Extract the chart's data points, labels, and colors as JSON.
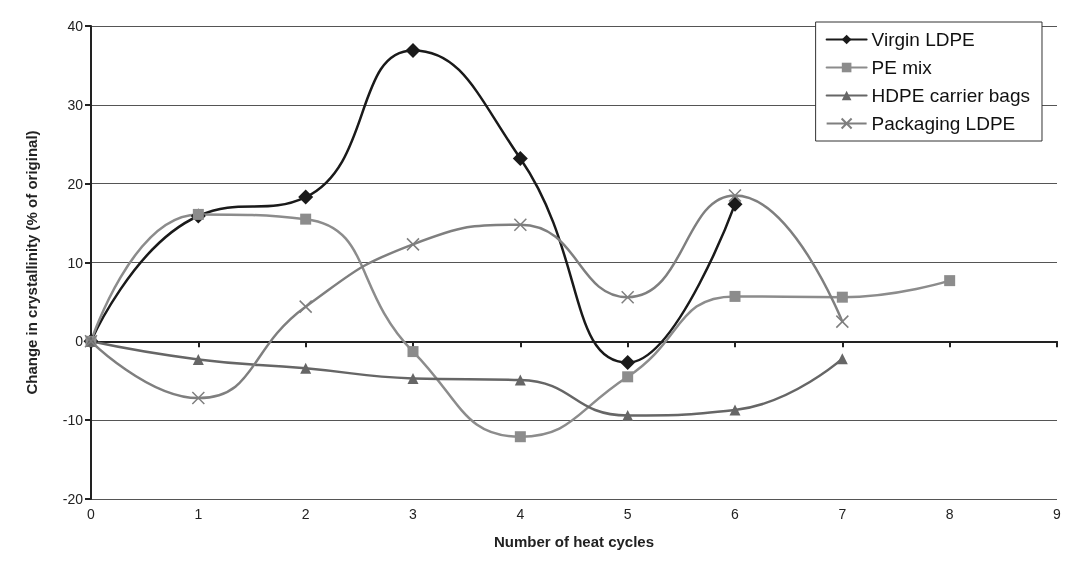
{
  "chart_data": {
    "type": "line",
    "xlabel": "Number of heat cycles",
    "ylabel": "Change in crystallinity (% of original)",
    "xlim": [
      0,
      9
    ],
    "xticks": [
      0,
      1,
      2,
      3,
      4,
      5,
      6,
      7,
      8,
      9
    ],
    "ylim": [
      -20,
      40
    ],
    "yticks": [
      -20,
      -10,
      0,
      10,
      20,
      30,
      40
    ],
    "grid": "y",
    "legend": "top right",
    "line_style": "solid",
    "series": [
      {
        "name": "Virgin LDPE",
        "color": "#1a1a1a",
        "marker": "diamond",
        "x": [
          0,
          1,
          2,
          3,
          4,
          5,
          6
        ],
        "values": [
          0,
          15.9,
          18.3,
          36.9,
          23.2,
          -2.7,
          17.4
        ]
      },
      {
        "name": "PE mix",
        "color": "#8c8c8c",
        "marker": "square",
        "x": [
          0,
          1,
          2,
          3,
          4,
          5,
          6,
          7,
          8
        ],
        "values": [
          0,
          16.1,
          15.5,
          -1.3,
          -12.1,
          -4.5,
          5.7,
          5.6,
          7.7
        ]
      },
      {
        "name": "HDPE carrier bags",
        "color": "#666666",
        "marker": "triangle",
        "x": [
          0,
          1,
          2,
          3,
          4,
          5,
          6,
          7
        ],
        "values": [
          0,
          -2.3,
          -3.4,
          -4.7,
          -4.9,
          -9.4,
          -8.7,
          -2.2
        ]
      },
      {
        "name": "Packaging LDPE",
        "color": "#7f7f7f",
        "marker": "cross",
        "x": [
          0,
          1,
          2,
          3,
          4,
          5,
          6,
          7
        ],
        "values": [
          0,
          -7.2,
          4.4,
          12.3,
          14.8,
          5.6,
          18.5,
          2.5
        ]
      }
    ]
  }
}
